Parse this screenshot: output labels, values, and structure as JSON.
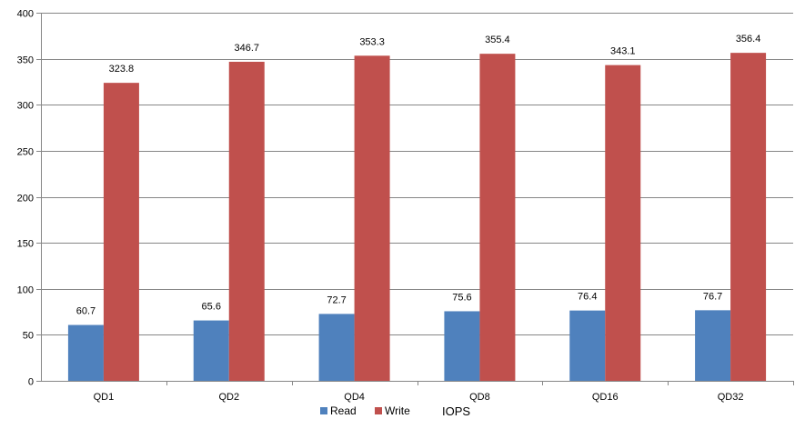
{
  "chart_data": {
    "type": "bar",
    "categories": [
      "QD1",
      "QD2",
      "QD4",
      "QD8",
      "QD16",
      "QD32"
    ],
    "series": [
      {
        "name": "Read",
        "color": "#4F81BD",
        "values": [
          60.7,
          65.6,
          72.7,
          75.6,
          76.4,
          76.7
        ]
      },
      {
        "name": "Write",
        "color": "#C0504D",
        "values": [
          323.8,
          346.7,
          353.3,
          355.4,
          343.1,
          356.4
        ]
      }
    ],
    "title": "",
    "xlabel": "",
    "ylabel": "",
    "ylim": [
      0,
      400
    ],
    "yticks": [
      0,
      50,
      100,
      150,
      200,
      250,
      300,
      350,
      400
    ],
    "grid": true,
    "legend_position": "bottom",
    "legend_title": "IOPS",
    "data_labels": true
  }
}
